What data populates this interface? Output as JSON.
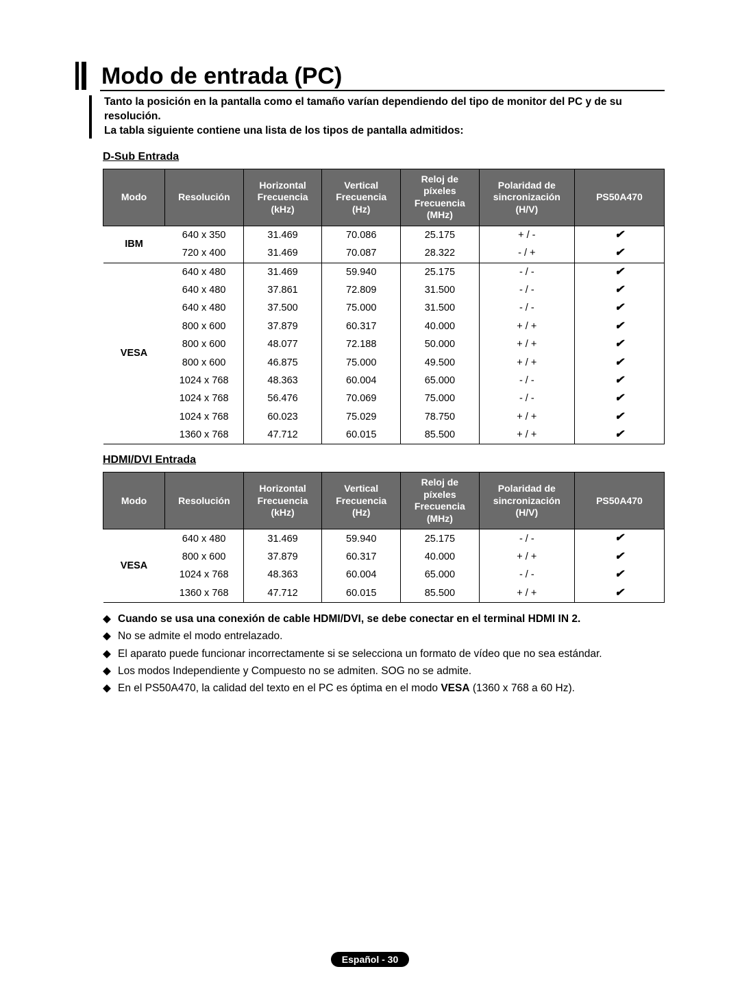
{
  "title": "Modo de entrada (PC)",
  "intro": {
    "line1": "Tanto la posición en la pantalla como el tamaño varían dependiendo del tipo de monitor del PC y de su resolución.",
    "line2": "La tabla siguiente contiene una lista de los tipos de pantalla admitidos:"
  },
  "labels": {
    "dsub": "D-Sub Entrada",
    "hdmi": "HDMI/DVI Entrada"
  },
  "headers": {
    "modo": "Modo",
    "resolucion": "Resolución",
    "hfreq": "Horizontal\nFrecuencia\n(kHz)",
    "vfreq": "Vertical\nFrecuencia\n(Hz)",
    "pix": "Reloj de\npíxeles\nFrecuencia\n(MHz)",
    "pol": "Polaridad de\nsincronización\n(H/V)",
    "model": "PS50A470"
  },
  "dsub_groups": [
    {
      "mode": "IBM",
      "rows": [
        {
          "res": "640 x 350",
          "hf": "31.469",
          "vf": "70.086",
          "px": "25.175",
          "pol": "+ / -",
          "ok": "✔"
        },
        {
          "res": "720 x 400",
          "hf": "31.469",
          "vf": "70.087",
          "px": "28.322",
          "pol": "- / +",
          "ok": "✔"
        }
      ]
    },
    {
      "mode": "VESA",
      "rows": [
        {
          "res": "640 x 480",
          "hf": "31.469",
          "vf": "59.940",
          "px": "25.175",
          "pol": "- / -",
          "ok": "✔"
        },
        {
          "res": "640 x 480",
          "hf": "37.861",
          "vf": "72.809",
          "px": "31.500",
          "pol": "- / -",
          "ok": "✔"
        },
        {
          "res": "640 x 480",
          "hf": "37.500",
          "vf": "75.000",
          "px": "31.500",
          "pol": "- / -",
          "ok": "✔"
        },
        {
          "res": "800 x 600",
          "hf": "37.879",
          "vf": "60.317",
          "px": "40.000",
          "pol": "+ / +",
          "ok": "✔"
        },
        {
          "res": "800 x 600",
          "hf": "48.077",
          "vf": "72.188",
          "px": "50.000",
          "pol": "+ / +",
          "ok": "✔"
        },
        {
          "res": "800 x 600",
          "hf": "46.875",
          "vf": "75.000",
          "px": "49.500",
          "pol": "+ / +",
          "ok": "✔"
        },
        {
          "res": "1024 x 768",
          "hf": "48.363",
          "vf": "60.004",
          "px": "65.000",
          "pol": "- / -",
          "ok": "✔"
        },
        {
          "res": "1024 x 768",
          "hf": "56.476",
          "vf": "70.069",
          "px": "75.000",
          "pol": "- / -",
          "ok": "✔"
        },
        {
          "res": "1024 x 768",
          "hf": "60.023",
          "vf": "75.029",
          "px": "78.750",
          "pol": "+ / +",
          "ok": "✔"
        },
        {
          "res": "1360 x 768",
          "hf": "47.712",
          "vf": "60.015",
          "px": "85.500",
          "pol": "+ / +",
          "ok": "✔"
        }
      ]
    }
  ],
  "hdmi_groups": [
    {
      "mode": "VESA",
      "rows": [
        {
          "res": "640 x 480",
          "hf": "31.469",
          "vf": "59.940",
          "px": "25.175",
          "pol": "- / -",
          "ok": "✔"
        },
        {
          "res": "800 x 600",
          "hf": "37.879",
          "vf": "60.317",
          "px": "40.000",
          "pol": "+ / +",
          "ok": "✔"
        },
        {
          "res": "1024 x 768",
          "hf": "48.363",
          "vf": "60.004",
          "px": "65.000",
          "pol": "- / -",
          "ok": "✔"
        },
        {
          "res": "1360 x 768",
          "hf": "47.712",
          "vf": "60.015",
          "px": "85.500",
          "pol": "+ / +",
          "ok": "✔"
        }
      ]
    }
  ],
  "notes": [
    {
      "bold": true,
      "text": "Cuando se usa una conexión de cable HDMI/DVI, se debe conectar en el terminal HDMI IN 2."
    },
    {
      "bold": false,
      "text": "No se admite el modo entrelazado."
    },
    {
      "bold": false,
      "text": "El aparato puede funcionar incorrectamente si se selecciona un formato de vídeo que no sea estándar."
    },
    {
      "bold": false,
      "text": "Los modos Independiente y Compuesto no se admiten. SOG no se admite."
    },
    {
      "bold": false,
      "prefix": "En el PS50A470, la calidad del texto en el PC es óptima en el modo ",
      "boldpart": "VESA",
      "suffix": " (1360 x 768 a 60 Hz)."
    }
  ],
  "footer": "Español - 30",
  "style": {
    "header_bg": "#6b6b6b",
    "header_fg": "#ffffff",
    "border": "#000000"
  }
}
